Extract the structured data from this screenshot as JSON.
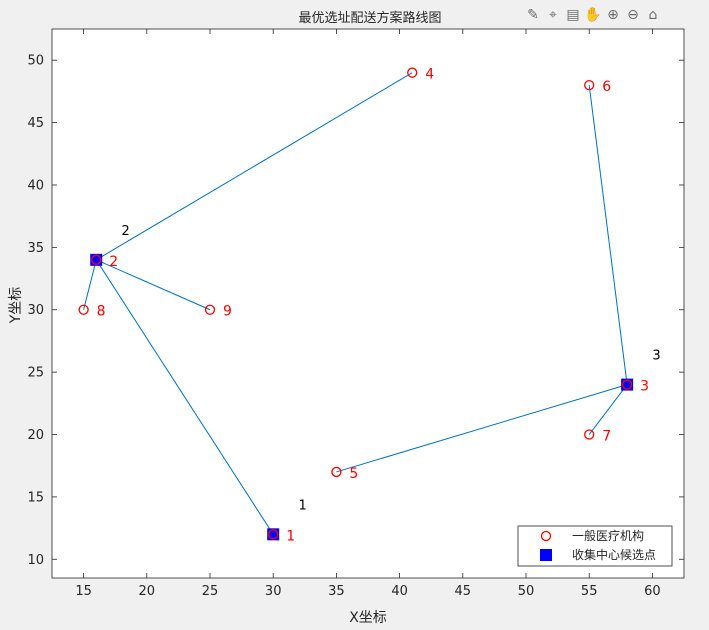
{
  "toolbar": {
    "icons": [
      "brush-icon",
      "data-tip-icon",
      "legend-icon",
      "pan-hand-icon",
      "zoom-in-icon",
      "zoom-out-icon",
      "home-icon"
    ]
  },
  "chart_data": {
    "type": "scatter",
    "title": "最优选址配送方案路线图",
    "xlabel": "X坐标",
    "ylabel": "Y坐标",
    "xlim": [
      12.5,
      62.5
    ],
    "ylim": [
      8.5,
      52.5
    ],
    "xticks": [
      15,
      20,
      25,
      30,
      35,
      40,
      45,
      50,
      55,
      60
    ],
    "yticks": [
      10,
      15,
      20,
      25,
      30,
      35,
      40,
      45,
      50
    ],
    "grid": false,
    "legend_position": "bottom-right",
    "colors": {
      "medical": "#ff0000",
      "center": "#0000ff",
      "route": "#0072bd",
      "label": "#ff0000"
    },
    "series": [
      {
        "name": "一般医疗机构",
        "marker": "circle",
        "points": [
          {
            "x": 30,
            "y": 12,
            "label": "1"
          },
          {
            "x": 16,
            "y": 34,
            "label": "2"
          },
          {
            "x": 58,
            "y": 24,
            "label": "3"
          },
          {
            "x": 41,
            "y": 49,
            "label": "4"
          },
          {
            "x": 35,
            "y": 17,
            "label": "5"
          },
          {
            "x": 55,
            "y": 48,
            "label": "6"
          },
          {
            "x": 55,
            "y": 20,
            "label": "7"
          },
          {
            "x": 15,
            "y": 30,
            "label": "8"
          },
          {
            "x": 25,
            "y": 30,
            "label": "9"
          }
        ]
      },
      {
        "name": "收集中心候选点",
        "marker": "square",
        "points": [
          {
            "x": 30,
            "y": 12,
            "label": "1"
          },
          {
            "x": 16,
            "y": 34,
            "label": "2"
          },
          {
            "x": 58,
            "y": 24,
            "label": "3"
          }
        ]
      }
    ],
    "routes": [
      {
        "from": [
          16,
          34
        ],
        "to": [
          41,
          49
        ]
      },
      {
        "from": [
          16,
          34
        ],
        "to": [
          15,
          30
        ]
      },
      {
        "from": [
          16,
          34
        ],
        "to": [
          25,
          30
        ]
      },
      {
        "from": [
          16,
          34
        ],
        "to": [
          30,
          12
        ]
      },
      {
        "from": [
          58,
          24
        ],
        "to": [
          55,
          48
        ]
      },
      {
        "from": [
          58,
          24
        ],
        "to": [
          35,
          17
        ]
      },
      {
        "from": [
          58,
          24
        ],
        "to": [
          55,
          20
        ]
      }
    ],
    "annotations": [
      {
        "x": 32,
        "y": 14,
        "text": "1"
      },
      {
        "x": 18,
        "y": 36,
        "text": "2"
      },
      {
        "x": 60,
        "y": 26,
        "text": "3"
      }
    ]
  }
}
